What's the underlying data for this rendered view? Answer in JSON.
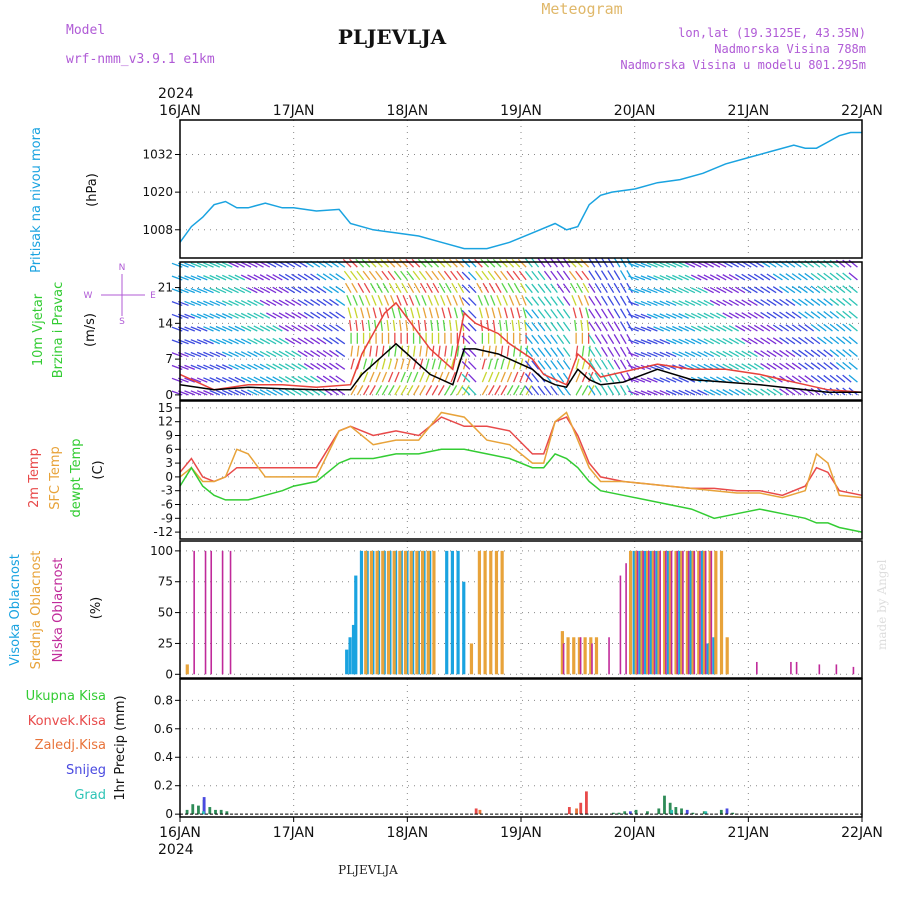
{
  "header": {
    "model_label": "Model",
    "model_name": "wrf-nmm_v3.9.1  e1km",
    "station_title": "PLJEVLJA",
    "meteogram_label": "Meteogram",
    "lonlat": "lon,lat (19.3125E, 43.35N)",
    "altitude": "Nadmorska Visina 788m",
    "model_altitude": "Nadmorska Visina u modelu 801.295m",
    "year": "2024",
    "footer_station": "PLJEVLJA",
    "credit": "made by Angel"
  },
  "colors": {
    "pressure": "#1aa3e0",
    "wind_speed": "#000000",
    "gust": "#e8413a",
    "temp_2m": "#e84a4a",
    "temp_sfc": "#e8a33a",
    "dewpoint": "#33cc33",
    "cloud_high": "#1aa3e0",
    "cloud_mid": "#e8a33a",
    "cloud_low": "#c02a9a",
    "precip_total": "#2e8b57",
    "precip_conv": "#e84a4a",
    "precip_frozen": "#e8733a",
    "precip_snow": "#4a4ae0",
    "precip_graupel": "#2ec4b6"
  },
  "chart_data": [
    {
      "type": "line",
      "panel": "pressure",
      "ylabel": "Pritisak na nivou mora",
      "unit": "(hPa)",
      "x_ticks": [
        "16JAN",
        "17JAN",
        "18JAN",
        "19JAN",
        "20JAN",
        "21JAN",
        "22JAN"
      ],
      "yticks": [
        1008,
        1020,
        1032
      ],
      "ylim": [
        999,
        1043
      ],
      "grid": true,
      "x": [
        0,
        0.1,
        0.2,
        0.3,
        0.4,
        0.5,
        0.6,
        0.75,
        0.9,
        1.0,
        1.2,
        1.4,
        1.5,
        1.7,
        1.9,
        2.1,
        2.3,
        2.5,
        2.7,
        2.9,
        3.1,
        3.3,
        3.4,
        3.5,
        3.6,
        3.7,
        3.8,
        4.0,
        4.2,
        4.4,
        4.6,
        4.8,
        5.0,
        5.2,
        5.4,
        5.5,
        5.6,
        5.7,
        5.8,
        5.9,
        6.0
      ],
      "y": [
        1004,
        1009,
        1012,
        1016,
        1017,
        1015,
        1015,
        1016.5,
        1015,
        1015,
        1014,
        1014.5,
        1010,
        1008,
        1007,
        1006,
        1004,
        1002,
        1002,
        1004,
        1007,
        1010,
        1008,
        1009,
        1016,
        1019,
        1020,
        1021,
        1023,
        1024,
        1026,
        1029,
        1031,
        1033,
        1035,
        1034,
        1034,
        1036,
        1038,
        1039,
        1039
      ]
    },
    {
      "type": "line",
      "panel": "wind",
      "ylabel": "10m Vjetar",
      "ylabel2": "Brzina i Pravac",
      "unit": "(m/s)",
      "legend_compass": [
        "N",
        "E",
        "S",
        "W"
      ],
      "yticks": [
        0,
        7,
        14,
        21
      ],
      "ylim": [
        -1,
        26
      ],
      "grid": true,
      "series": [
        {
          "name": "wind speed",
          "x": [
            0,
            0.3,
            0.6,
            0.9,
            1.2,
            1.5,
            1.6,
            1.8,
            1.9,
            2.1,
            2.2,
            2.4,
            2.5,
            2.6,
            2.8,
            2.9,
            3.1,
            3.2,
            3.3,
            3.4,
            3.5,
            3.6,
            3.7,
            3.9,
            4.2,
            4.5,
            4.8,
            5.1,
            5.3,
            5.5,
            5.7,
            6.0
          ],
          "y": [
            2,
            1,
            1.5,
            1.2,
            1,
            1,
            4,
            8,
            10,
            6,
            4,
            2,
            9,
            9,
            8,
            7,
            5,
            3,
            2,
            1.5,
            5,
            3,
            2,
            2.5,
            5,
            3,
            2.5,
            2,
            1.5,
            1,
            0.5,
            0.5
          ]
        },
        {
          "name": "gust",
          "x": [
            0,
            0.3,
            0.6,
            0.9,
            1.2,
            1.5,
            1.6,
            1.8,
            1.9,
            2.1,
            2.2,
            2.4,
            2.5,
            2.6,
            2.8,
            2.9,
            3.1,
            3.2,
            3.3,
            3.4,
            3.5,
            3.6,
            3.7,
            3.9,
            4.2,
            4.5,
            4.8,
            5.1,
            5.3,
            5.5,
            5.7,
            6.0
          ],
          "y": [
            4,
            1,
            2,
            2,
            1.5,
            2,
            8,
            16,
            18,
            12,
            9,
            5,
            16,
            14,
            12,
            10,
            7,
            4,
            3,
            2,
            8,
            6,
            3.5,
            4.5,
            6,
            5,
            5,
            4,
            3,
            2,
            1,
            0.5
          ]
        }
      ]
    },
    {
      "type": "line",
      "panel": "temperature",
      "ylabel": "2m Temp",
      "ylabel2": "SFC Temp",
      "ylabel3": "dewpt Temp",
      "unit": "(C)",
      "yticks": [
        -12,
        -9,
        -6,
        -3,
        0,
        3,
        6,
        9,
        12,
        15
      ],
      "ylim": [
        -13.5,
        16.5
      ],
      "grid": true,
      "x": [
        0,
        0.1,
        0.2,
        0.3,
        0.4,
        0.5,
        0.6,
        0.75,
        0.9,
        1.0,
        1.2,
        1.4,
        1.5,
        1.7,
        1.9,
        2.1,
        2.3,
        2.5,
        2.7,
        2.9,
        3.1,
        3.2,
        3.3,
        3.4,
        3.5,
        3.6,
        3.7,
        3.9,
        4.1,
        4.3,
        4.5,
        4.7,
        4.9,
        5.1,
        5.3,
        5.5,
        5.6,
        5.7,
        5.8,
        6.0
      ],
      "series": [
        {
          "name": "2m Temp",
          "values": [
            1,
            4,
            0,
            -1,
            0,
            2,
            2,
            2,
            2,
            2,
            2,
            10,
            11,
            9,
            10,
            9,
            13,
            11,
            11,
            10,
            5,
            5,
            12,
            13,
            9,
            3,
            0,
            -1,
            -1.5,
            -2,
            -2.5,
            -2.5,
            -3,
            -3,
            -4,
            -2,
            2,
            1,
            -3,
            -4
          ]
        },
        {
          "name": "SFC Temp",
          "values": [
            0,
            2,
            -1,
            -1,
            0,
            6,
            5,
            0,
            0,
            0,
            0,
            10,
            11,
            7,
            8,
            8,
            14,
            13,
            8,
            7,
            3,
            3,
            12,
            14,
            8,
            2,
            -1,
            -1,
            -1.5,
            -2,
            -2.5,
            -3,
            -3.5,
            -3.5,
            -4.5,
            -3,
            5,
            3,
            -4,
            -4.5
          ]
        },
        {
          "name": "dewpt Temp",
          "values": [
            -2,
            2,
            -2,
            -4,
            -5,
            -5,
            -5,
            -4,
            -3,
            -2,
            -1,
            3,
            4,
            4,
            5,
            5,
            6,
            6,
            5,
            4,
            2,
            2,
            5,
            4,
            2,
            -1,
            -3,
            -4,
            -5,
            -6,
            -7,
            -9,
            -8,
            -7,
            -8,
            -9,
            -10,
            -10,
            -11,
            -12
          ]
        }
      ]
    },
    {
      "type": "bar",
      "panel": "cloud",
      "ylabel": "Visoka Oblacnost",
      "ylabel2": "Srednja Oblacnost",
      "ylabel3": "Niska Oblacnost",
      "unit": "(%)",
      "yticks": [
        0,
        25,
        50,
        75,
        100
      ],
      "ylim": [
        -3,
        108
      ],
      "grid": true,
      "series": [
        {
          "name": "Visoka Oblacnost",
          "x": [
            1.47,
            1.5,
            1.53,
            1.55,
            1.6,
            1.65,
            1.7,
            1.75,
            1.8,
            1.85,
            1.9,
            1.95,
            2.0,
            2.05,
            2.1,
            2.15,
            2.2,
            2.35,
            2.4,
            2.45,
            2.5,
            3.1,
            4.0,
            4.05,
            4.1,
            4.15,
            4.2,
            4.3,
            4.4,
            4.5,
            4.6,
            4.65,
            4.7
          ],
          "values": [
            20,
            30,
            40,
            80,
            100,
            100,
            100,
            100,
            100,
            100,
            100,
            100,
            100,
            100,
            100,
            100,
            100,
            100,
            100,
            100,
            75,
            0,
            100,
            100,
            100,
            100,
            100,
            100,
            100,
            100,
            100,
            25,
            30
          ]
        },
        {
          "name": "Srednja Oblacnost",
          "x": [
            0.05,
            1.62,
            1.67,
            1.72,
            1.77,
            1.82,
            1.87,
            1.92,
            1.97,
            2.02,
            2.07,
            2.12,
            2.17,
            2.22,
            2.55,
            2.62,
            2.67,
            2.72,
            2.77,
            2.82,
            3.35,
            3.4,
            3.45,
            3.5,
            3.55,
            3.6,
            3.65,
            3.95,
            4.0,
            4.05,
            4.1,
            4.15,
            4.2,
            4.25,
            4.3,
            4.35,
            4.4,
            4.45,
            4.5,
            4.55,
            4.6,
            4.65,
            4.7,
            4.75,
            4.8
          ],
          "values": [
            8,
            100,
            100,
            100,
            100,
            100,
            100,
            100,
            100,
            100,
            100,
            100,
            100,
            100,
            25,
            100,
            100,
            100,
            100,
            100,
            35,
            30,
            30,
            30,
            30,
            30,
            30,
            100,
            100,
            100,
            100,
            100,
            100,
            100,
            100,
            100,
            100,
            100,
            100,
            100,
            100,
            100,
            100,
            100,
            30
          ]
        },
        {
          "name": "Niska Oblacnost",
          "x": [
            0.1,
            0.2,
            0.25,
            0.35,
            0.42,
            3.35,
            3.5,
            3.6,
            3.75,
            3.85,
            3.9,
            4.0,
            4.05,
            4.1,
            4.15,
            4.2,
            4.25,
            4.3,
            4.35,
            4.4,
            4.45,
            4.5,
            4.55,
            4.6,
            4.65,
            5.05,
            5.35,
            5.4,
            5.6,
            5.75,
            5.9
          ],
          "values": [
            100,
            100,
            100,
            100,
            100,
            25,
            30,
            25,
            30,
            80,
            90,
            100,
            100,
            100,
            100,
            100,
            100,
            100,
            100,
            100,
            100,
            100,
            100,
            100,
            100,
            10,
            10,
            10,
            8,
            8,
            6
          ]
        }
      ]
    },
    {
      "type": "bar",
      "panel": "precip",
      "ylabel": "1hr Precip (mm)",
      "legend": [
        "Ukupna Kisa",
        "Konvek.Kisa",
        "Zaledj.Kisa",
        "Snijeg",
        "Grad"
      ],
      "yticks": [
        0,
        0.2,
        0.4,
        0.6,
        0.8
      ],
      "ylim": [
        -0.02,
        0.95
      ],
      "grid": true,
      "x_ticks": [
        "16JAN",
        "17JAN",
        "18JAN",
        "19JAN",
        "20JAN",
        "21JAN",
        "22JAN"
      ],
      "series": [
        {
          "name": "Ukupna Kisa",
          "x": [
            0.05,
            0.1,
            0.15,
            0.2,
            0.25,
            0.3,
            0.35,
            0.4,
            3.8,
            3.85,
            3.9,
            4.0,
            4.1,
            4.2,
            4.25,
            4.3,
            4.35,
            4.4,
            4.5,
            4.6,
            4.75,
            4.85
          ],
          "values": [
            0.03,
            0.07,
            0.06,
            0.1,
            0.05,
            0.03,
            0.03,
            0.02,
            0.01,
            0.01,
            0.02,
            0.03,
            0.02,
            0.04,
            0.13,
            0.08,
            0.05,
            0.04,
            0.01,
            0.02,
            0.03,
            0.01
          ]
        },
        {
          "name": "Konvek.Kisa",
          "x": [
            2.58,
            3.4,
            3.5,
            3.55
          ],
          "values": [
            0.04,
            0.05,
            0.08,
            0.16
          ]
        },
        {
          "name": "Zaledj.Kisa",
          "x": [
            2.6,
            3.45
          ],
          "values": [
            0.03,
            0.04
          ]
        },
        {
          "name": "Snijeg",
          "x": [
            0.2,
            3.95,
            4.45,
            4.8
          ],
          "values": [
            0.12,
            0.02,
            0.03,
            0.04
          ]
        },
        {
          "name": "Grad",
          "x": [
            0.18,
            4.3,
            4.6
          ],
          "values": [
            0.02,
            0.03,
            0.02
          ]
        }
      ]
    }
  ]
}
